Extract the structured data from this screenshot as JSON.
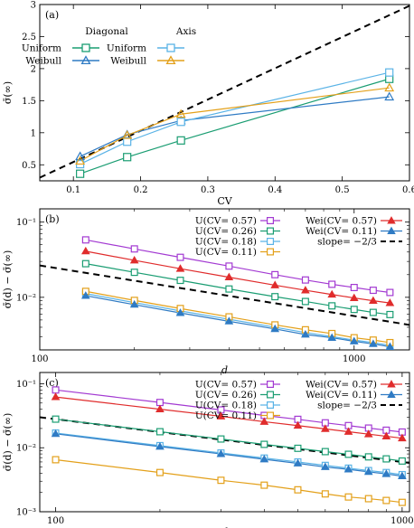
{
  "chart_data": [
    {
      "panel": "(a)",
      "type": "line",
      "xlabel": "CV",
      "ylabel": "σ̄(∞)",
      "xlim": [
        0.05,
        0.6
      ],
      "ylim": [
        0.25,
        3.0
      ],
      "xticks": [
        0.1,
        0.2,
        0.3,
        0.4,
        0.5,
        0.6
      ],
      "yticks": [
        0.5,
        1,
        1.5,
        2,
        2.5,
        3
      ],
      "xtick_labels": [
        "0.1",
        "0.2",
        "0.3",
        "0.4",
        "0.5",
        "0.6"
      ],
      "ytick_labels": [
        "0.5",
        "1",
        "1.5",
        "2",
        "2.5",
        "3"
      ],
      "legend_headers": [
        "Diagonal",
        "Axis"
      ],
      "legend_position": "top-left",
      "series": [
        {
          "name": "Uniform",
          "group": "Diagonal",
          "color": "#1a9d72",
          "marker": "square",
          "x": [
            0.11,
            0.18,
            0.26,
            0.57
          ],
          "y": [
            0.36,
            0.62,
            0.88,
            1.84
          ]
        },
        {
          "name": "Weibull",
          "group": "Diagonal",
          "color": "#2f7bc4",
          "marker": "triangle",
          "x": [
            0.11,
            0.18,
            0.26,
            0.57
          ],
          "y": [
            0.63,
            0.97,
            1.19,
            1.56
          ]
        },
        {
          "name": "Uniform",
          "group": "Axis",
          "color": "#5ab3e6",
          "marker": "square",
          "x": [
            0.11,
            0.18,
            0.26,
            0.57
          ],
          "y": [
            0.51,
            0.86,
            1.17,
            1.94
          ]
        },
        {
          "name": "Weibull",
          "group": "Axis",
          "color": "#e3a01a",
          "marker": "triangle",
          "x": [
            0.11,
            0.18,
            0.26,
            0.57
          ],
          "y": [
            0.56,
            0.96,
            1.29,
            1.7
          ]
        }
      ],
      "reference_line": {
        "color": "#000000",
        "dashed": true,
        "x": [
          0.05,
          0.6
        ],
        "y": [
          0.3,
          2.98
        ]
      }
    },
    {
      "panel": "(b)",
      "type": "line",
      "xlabel": "d",
      "ylabel": "σ̄(d) − σ̄(∞)",
      "xscale": "log",
      "yscale": "log",
      "xlim": [
        100,
        1500
      ],
      "ylim": [
        0.002,
        0.15
      ],
      "xticks": [
        100,
        1000
      ],
      "yticks": [
        0.01,
        0.1
      ],
      "xtick_labels": [
        "100",
        "1000"
      ],
      "ytick_labels": [
        "10⁻²",
        "10⁻¹"
      ],
      "legend_position": "top-right",
      "series": [
        {
          "name": "U(CV= 0.57)",
          "color": "#a33ad2",
          "marker": "square",
          "x": [
            140,
            200,
            280,
            400,
            560,
            700,
            850,
            1000,
            1150,
            1300
          ],
          "y": [
            0.058,
            0.044,
            0.034,
            0.026,
            0.02,
            0.017,
            0.0149,
            0.0135,
            0.0124,
            0.0116
          ]
        },
        {
          "name": "U(CV= 0.26)",
          "color": "#1a9d72",
          "marker": "square",
          "x": [
            140,
            200,
            280,
            400,
            560,
            700,
            850,
            1000,
            1150,
            1300
          ],
          "y": [
            0.028,
            0.0215,
            0.0168,
            0.0129,
            0.0102,
            0.0088,
            0.0077,
            0.0069,
            0.0063,
            0.0059
          ]
        },
        {
          "name": "U(CV= 0.18)",
          "color": "#5ab3e6",
          "marker": "square",
          "x": [
            140,
            200,
            280,
            400,
            560,
            700,
            850,
            1000,
            1150,
            1300
          ],
          "y": [
            0.0112,
            0.0085,
            0.0066,
            0.0051,
            0.004,
            0.0034,
            0.003,
            0.0027,
            0.0025,
            0.0023
          ]
        },
        {
          "name": "U(CV= 0.11)",
          "color": "#e3a01a",
          "marker": "square",
          "x": [
            140,
            200,
            280,
            400,
            560,
            700,
            850,
            1000,
            1150,
            1300
          ],
          "y": [
            0.012,
            0.0091,
            0.0071,
            0.0055,
            0.0043,
            0.0037,
            0.0033,
            0.0029,
            0.0027,
            0.0025
          ]
        },
        {
          "name": "Wei(CV= 0.57)",
          "color": "#e02c2c",
          "marker": "triangle",
          "x": [
            140,
            200,
            280,
            400,
            560,
            700,
            850,
            1000,
            1150,
            1300
          ],
          "y": [
            0.041,
            0.031,
            0.024,
            0.0185,
            0.0145,
            0.0124,
            0.0109,
            0.0098,
            0.009,
            0.0084
          ]
        },
        {
          "name": "Wei(CV= 0.11)",
          "color": "#2f7bc4",
          "marker": "triangle",
          "x": [
            140,
            200,
            280,
            400,
            560,
            700,
            850,
            1000,
            1150,
            1300
          ],
          "y": [
            0.0105,
            0.008,
            0.0062,
            0.0048,
            0.0038,
            0.0032,
            0.0029,
            0.0026,
            0.0024,
            0.0022
          ]
        }
      ],
      "reference_line": {
        "name": "slope= −2/3",
        "color": "#000000",
        "dashed": true,
        "x": [
          100,
          1500
        ],
        "y": [
          0.0265,
          0.0043
        ]
      }
    },
    {
      "panel": "(c)",
      "type": "line",
      "xlabel": "d",
      "ylabel": "σ̄(d) − σ̄(∞)",
      "xscale": "log",
      "yscale": "log",
      "xlim": [
        90,
        1050
      ],
      "ylim": [
        0.001,
        0.15
      ],
      "xticks": [
        100,
        1000
      ],
      "yticks": [
        0.001,
        0.01,
        0.1
      ],
      "xtick_labels": [
        "100",
        "1000"
      ],
      "ytick_labels": [
        "10⁻³",
        "10⁻²",
        "10⁻¹"
      ],
      "legend_position": "top-right",
      "series": [
        {
          "name": "U(CV= 0.57)",
          "color": "#a33ad2",
          "marker": "square",
          "x": [
            100,
            200,
            300,
            400,
            500,
            600,
            700,
            800,
            900,
            1000
          ],
          "y": [
            0.08,
            0.051,
            0.039,
            0.032,
            0.0278,
            0.0245,
            0.0222,
            0.0203,
            0.0188,
            0.0176
          ]
        },
        {
          "name": "U(CV= 0.26)",
          "color": "#1a9d72",
          "marker": "square",
          "x": [
            100,
            200,
            300,
            400,
            500,
            600,
            700,
            800,
            900,
            1000
          ],
          "y": [
            0.028,
            0.0178,
            0.0137,
            0.0113,
            0.0098,
            0.0087,
            0.0079,
            0.0072,
            0.0067,
            0.0062
          ]
        },
        {
          "name": "U(CV= 0.18)",
          "color": "#5ab3e6",
          "marker": "square",
          "x": [
            100,
            200,
            300,
            400,
            500,
            600,
            700,
            800,
            900,
            1000
          ],
          "y": [
            0.017,
            0.0108,
            0.0083,
            0.0069,
            0.006,
            0.0053,
            0.0048,
            0.0044,
            0.0041,
            0.0038
          ]
        },
        {
          "name": "U(CV= 0.11)",
          "color": "#e3a01a",
          "marker": "square",
          "x": [
            100,
            200,
            300,
            400,
            500,
            600,
            700,
            800,
            900,
            1000
          ],
          "y": [
            0.0065,
            0.0041,
            0.0031,
            0.0026,
            0.0022,
            0.0019,
            0.0017,
            0.0016,
            0.0015,
            0.0014
          ]
        },
        {
          "name": "Wei(CV= 0.57)",
          "color": "#e02c2c",
          "marker": "triangle",
          "x": [
            100,
            200,
            300,
            400,
            500,
            600,
            700,
            800,
            900,
            1000
          ],
          "y": [
            0.062,
            0.04,
            0.031,
            0.0255,
            0.0222,
            0.0197,
            0.0178,
            0.0163,
            0.0151,
            0.0141
          ]
        },
        {
          "name": "Wei(CV= 0.11)",
          "color": "#2f7bc4",
          "marker": "triangle",
          "x": [
            100,
            200,
            300,
            400,
            500,
            600,
            700,
            800,
            900,
            1000
          ],
          "y": [
            0.0165,
            0.0104,
            0.008,
            0.0066,
            0.0057,
            0.005,
            0.0046,
            0.0042,
            0.0039,
            0.0036
          ]
        }
      ],
      "reference_line": {
        "name": "slope= −2/3",
        "color": "#000000",
        "dashed": true,
        "x": [
          90,
          1050
        ],
        "y": [
          0.03,
          0.0058
        ]
      }
    }
  ]
}
